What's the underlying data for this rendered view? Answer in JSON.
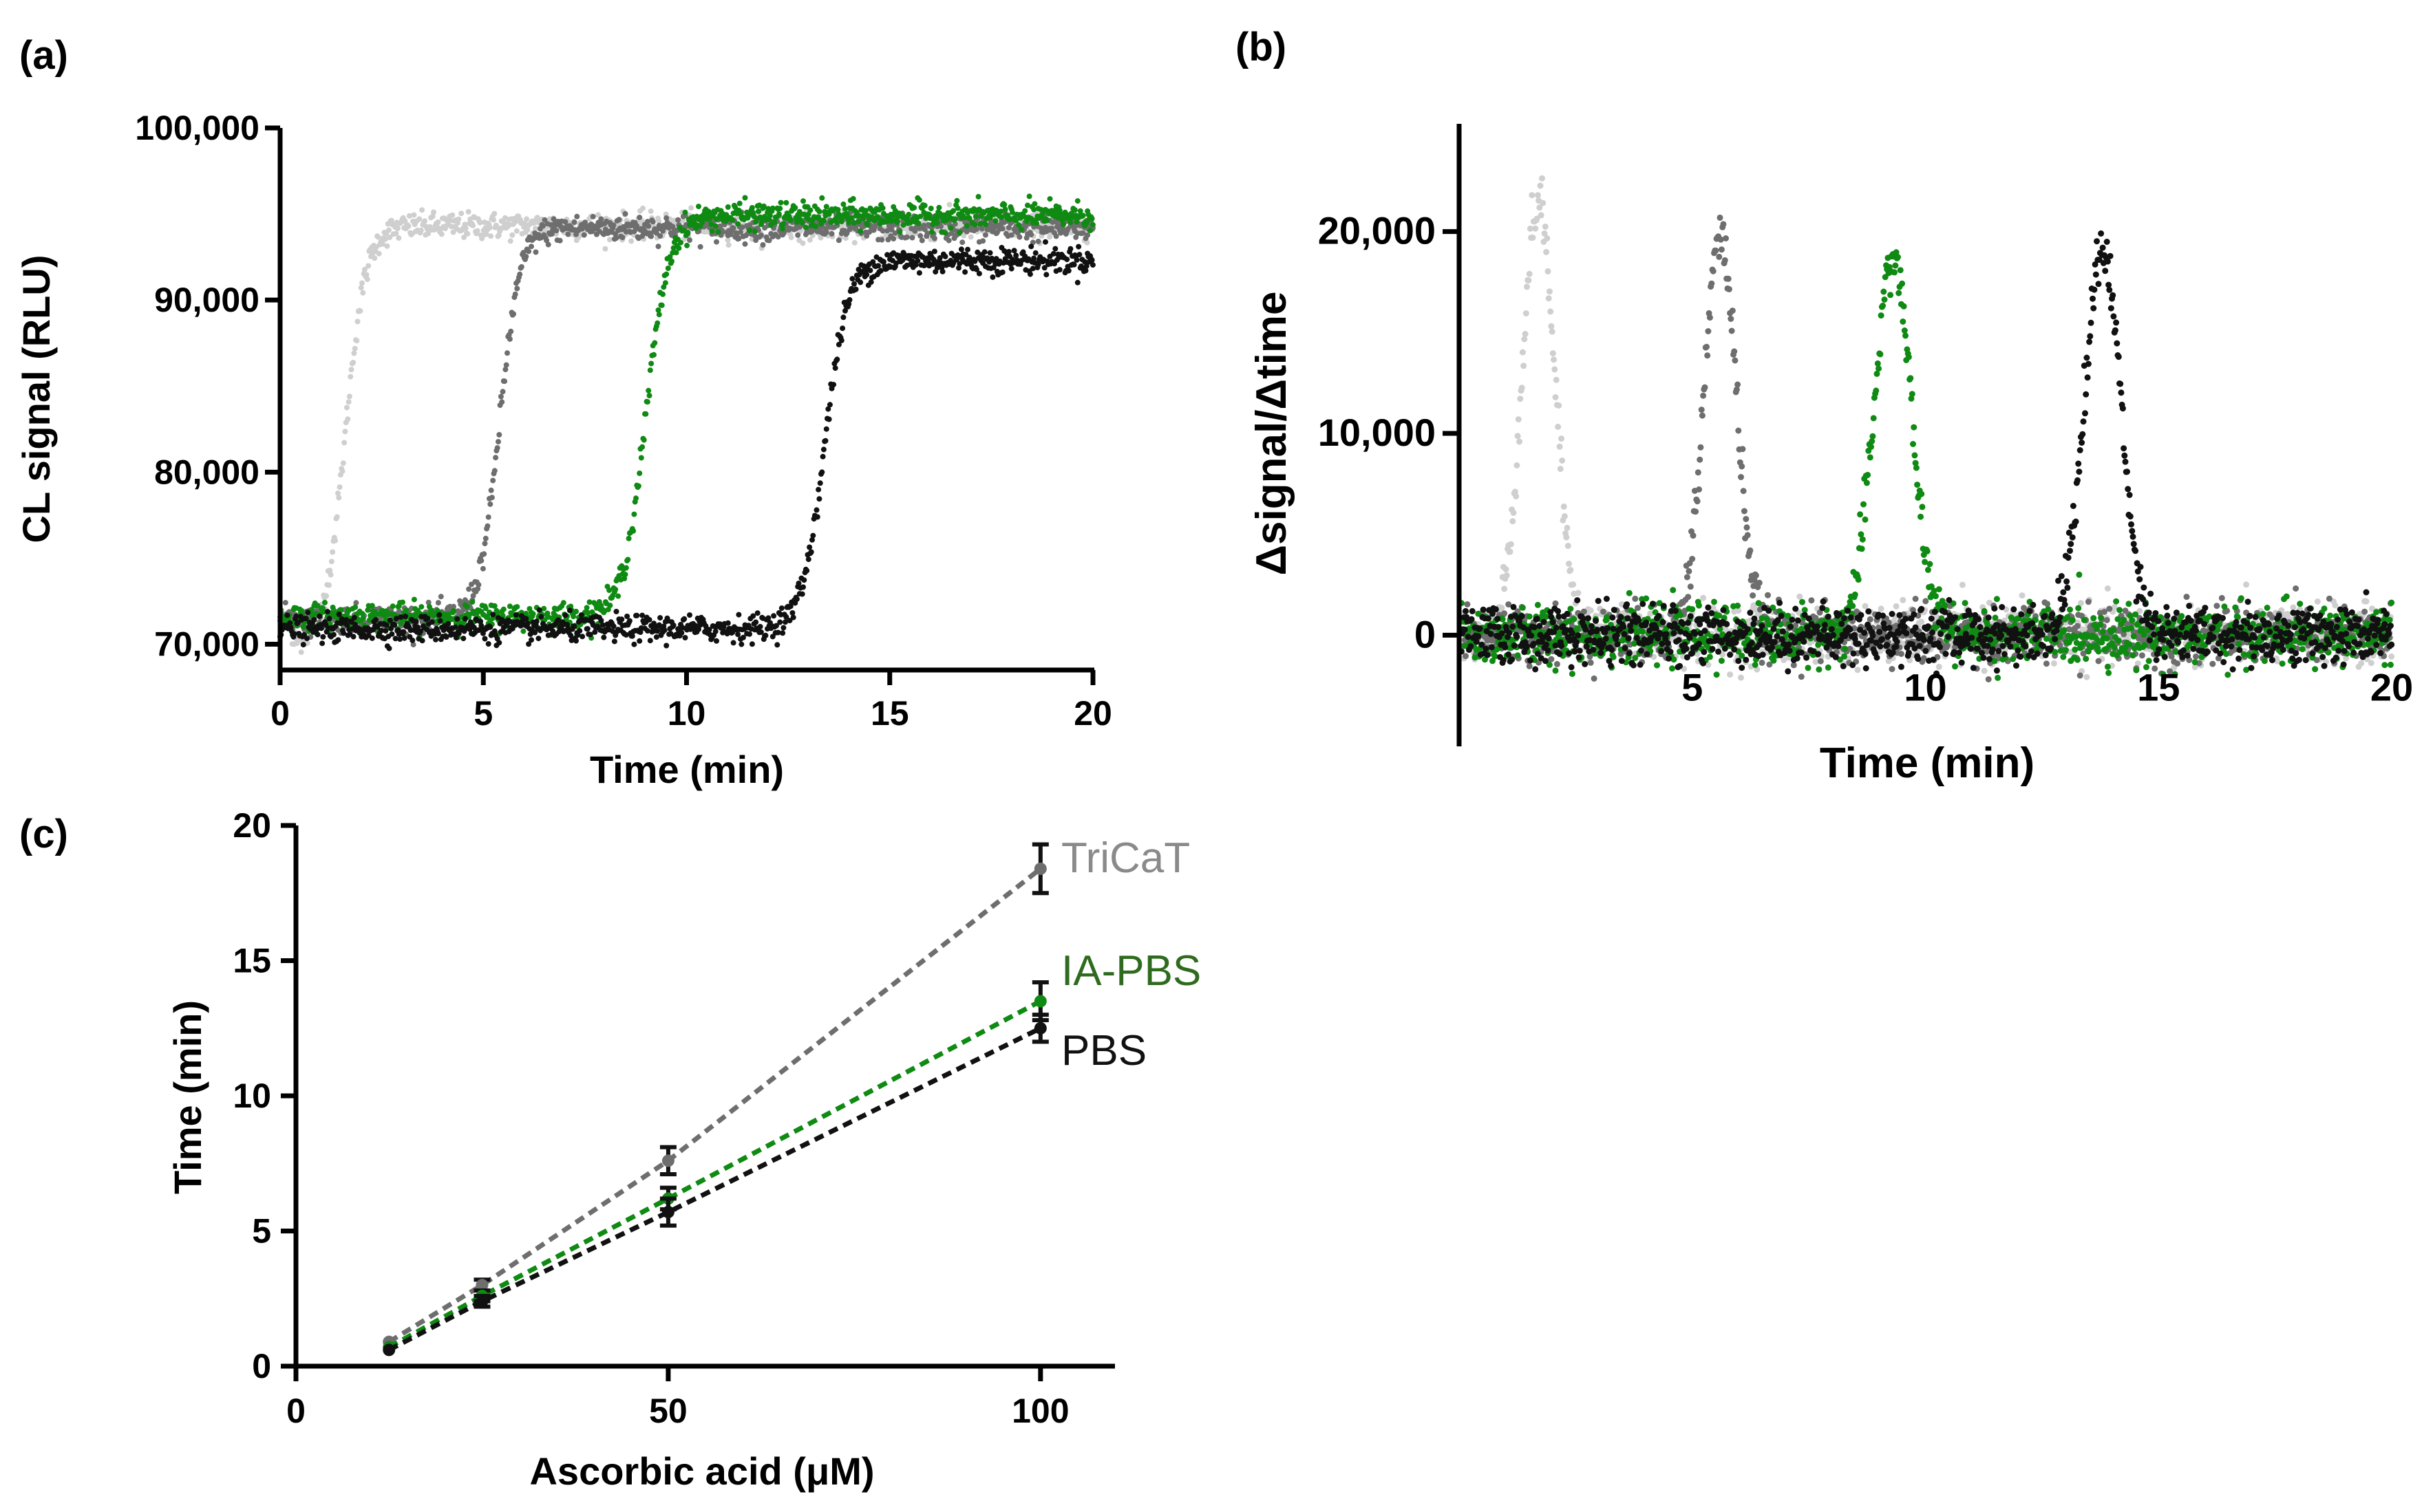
{
  "colors": {
    "light_gray": "#cfcfcf",
    "mid_gray": "#6e6e6e",
    "green": "#0f8a12",
    "black": "#111111",
    "tricat_label": "#8a8a8a",
    "iapbs_label": "#2f6b1f",
    "pbs_label": "#111111"
  },
  "panels": {
    "a": {
      "label": "(a)"
    },
    "b": {
      "label": "(b)"
    },
    "c": {
      "label": "(c)"
    }
  },
  "chart_data": [
    {
      "id": "a",
      "type": "scatter",
      "title": "",
      "xlabel": "Time (min)",
      "ylabel": "CL signal (RLU)",
      "xlim": [
        0,
        20
      ],
      "ylim": [
        68500,
        100000
      ],
      "xticks": [
        0,
        5,
        10,
        15,
        20
      ],
      "xtick_labels": [
        "0",
        "5",
        "10",
        "15",
        "20"
      ],
      "yticks": [
        70000,
        80000,
        90000,
        100000
      ],
      "ytick_labels": [
        "70,000",
        "80,000",
        "90,000",
        "100,000"
      ],
      "series": [
        {
          "name": "light gray",
          "color": "light_gray",
          "midpoint": 1.6,
          "width": 0.25,
          "low": 70000,
          "high": 94300,
          "start": 0.3
        },
        {
          "name": "dark gray",
          "color": "mid_gray",
          "midpoint": 5.4,
          "width": 0.25,
          "low": 71500,
          "high": 94200,
          "start": 0
        },
        {
          "name": "green",
          "color": "green",
          "midpoint": 9.0,
          "width": 0.28,
          "low": 71600,
          "high": 94900,
          "start": 0
        },
        {
          "name": "black",
          "color": "black",
          "midpoint": 13.4,
          "width": 0.28,
          "low": 70900,
          "high": 92300,
          "start": 0
        }
      ]
    },
    {
      "id": "b",
      "type": "scatter",
      "title": "",
      "xlabel": "Time (min)",
      "ylabel": "Δsignal/Δtime",
      "xlim": [
        0,
        20
      ],
      "ylim": [
        -5000,
        25000
      ],
      "xticks": [
        5,
        10,
        15,
        20
      ],
      "xtick_labels": [
        "5",
        "10",
        "15",
        "20"
      ],
      "yticks": [
        0,
        10000,
        20000
      ],
      "ytick_labels": [
        "0",
        "10,000",
        "20,000"
      ],
      "series": [
        {
          "name": "light gray",
          "color": "light_gray",
          "peak_x": 1.7,
          "peak_y": 21500,
          "sigma": 0.35
        },
        {
          "name": "dark gray",
          "color": "mid_gray",
          "peak_x": 5.6,
          "peak_y": 19800,
          "sigma": 0.35
        },
        {
          "name": "green",
          "color": "green",
          "peak_x": 9.3,
          "peak_y": 18700,
          "sigma": 0.4
        },
        {
          "name": "black",
          "color": "black",
          "peak_x": 13.8,
          "peak_y": 19000,
          "sigma": 0.4
        }
      ]
    },
    {
      "id": "c",
      "type": "line",
      "title": "",
      "xlabel": "Ascorbic acid (μM)",
      "ylabel": "Time (min)",
      "xlim": [
        0,
        110
      ],
      "ylim": [
        0,
        20
      ],
      "xticks": [
        0,
        50,
        100
      ],
      "xtick_labels": [
        "0",
        "50",
        "100"
      ],
      "yticks": [
        0,
        5,
        10,
        15,
        20
      ],
      "ytick_labels": [
        "0",
        "5",
        "10",
        "15",
        "20"
      ],
      "x": [
        12.5,
        25,
        50,
        100
      ],
      "series": [
        {
          "name": "TriCaT",
          "color": "mid_gray",
          "label_color": "tricat_label",
          "values": [
            0.9,
            3.0,
            7.6,
            18.4
          ],
          "errors": [
            0.1,
            0.2,
            0.5,
            0.9
          ]
        },
        {
          "name": "IA-PBS",
          "color": "green",
          "label_color": "iapbs_label",
          "values": [
            0.7,
            2.6,
            6.2,
            13.5
          ],
          "errors": [
            0.1,
            0.2,
            0.4,
            0.7
          ]
        },
        {
          "name": "PBS",
          "color": "black",
          "label_color": "pbs_label",
          "values": [
            0.6,
            2.4,
            5.7,
            12.5
          ],
          "errors": [
            0.1,
            0.2,
            0.5,
            0.5
          ]
        }
      ]
    }
  ]
}
